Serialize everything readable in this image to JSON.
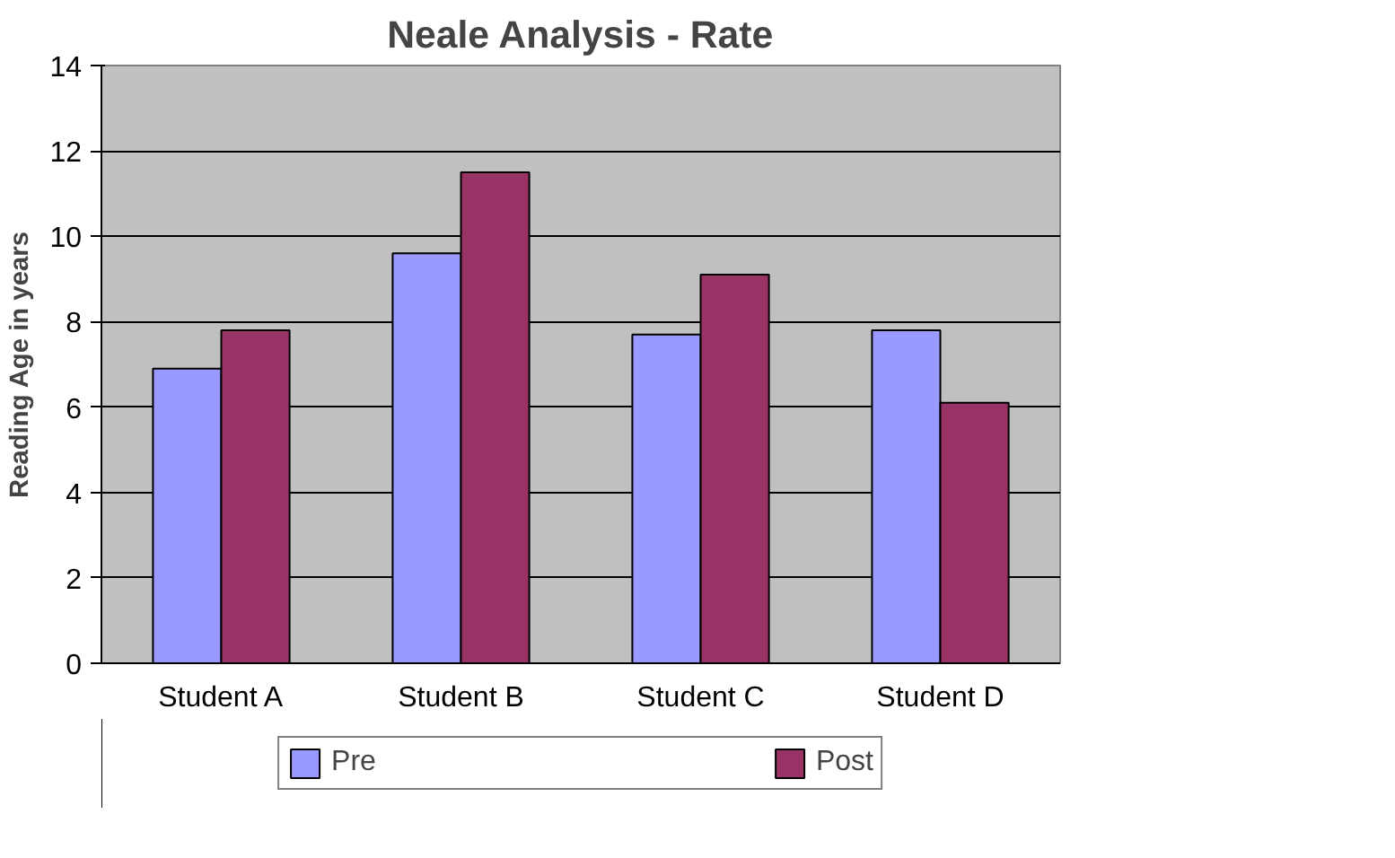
{
  "chart_data": {
    "type": "bar",
    "title": "Neale Analysis - Rate",
    "ylabel": "Reading Age in years",
    "categories": [
      "Student A",
      "Student B",
      "Student C",
      "Student D"
    ],
    "series": [
      {
        "name": "Pre",
        "color": "#9999ff",
        "values": [
          6.9,
          9.6,
          7.7,
          7.8
        ]
      },
      {
        "name": "Post",
        "color": "#993366",
        "values": [
          7.8,
          11.5,
          9.1,
          6.1
        ]
      }
    ],
    "ylim": [
      0,
      14
    ],
    "yticks": [
      0,
      2,
      4,
      6,
      8,
      10,
      12,
      14
    ],
    "grid": "y",
    "legend": "bottom"
  }
}
